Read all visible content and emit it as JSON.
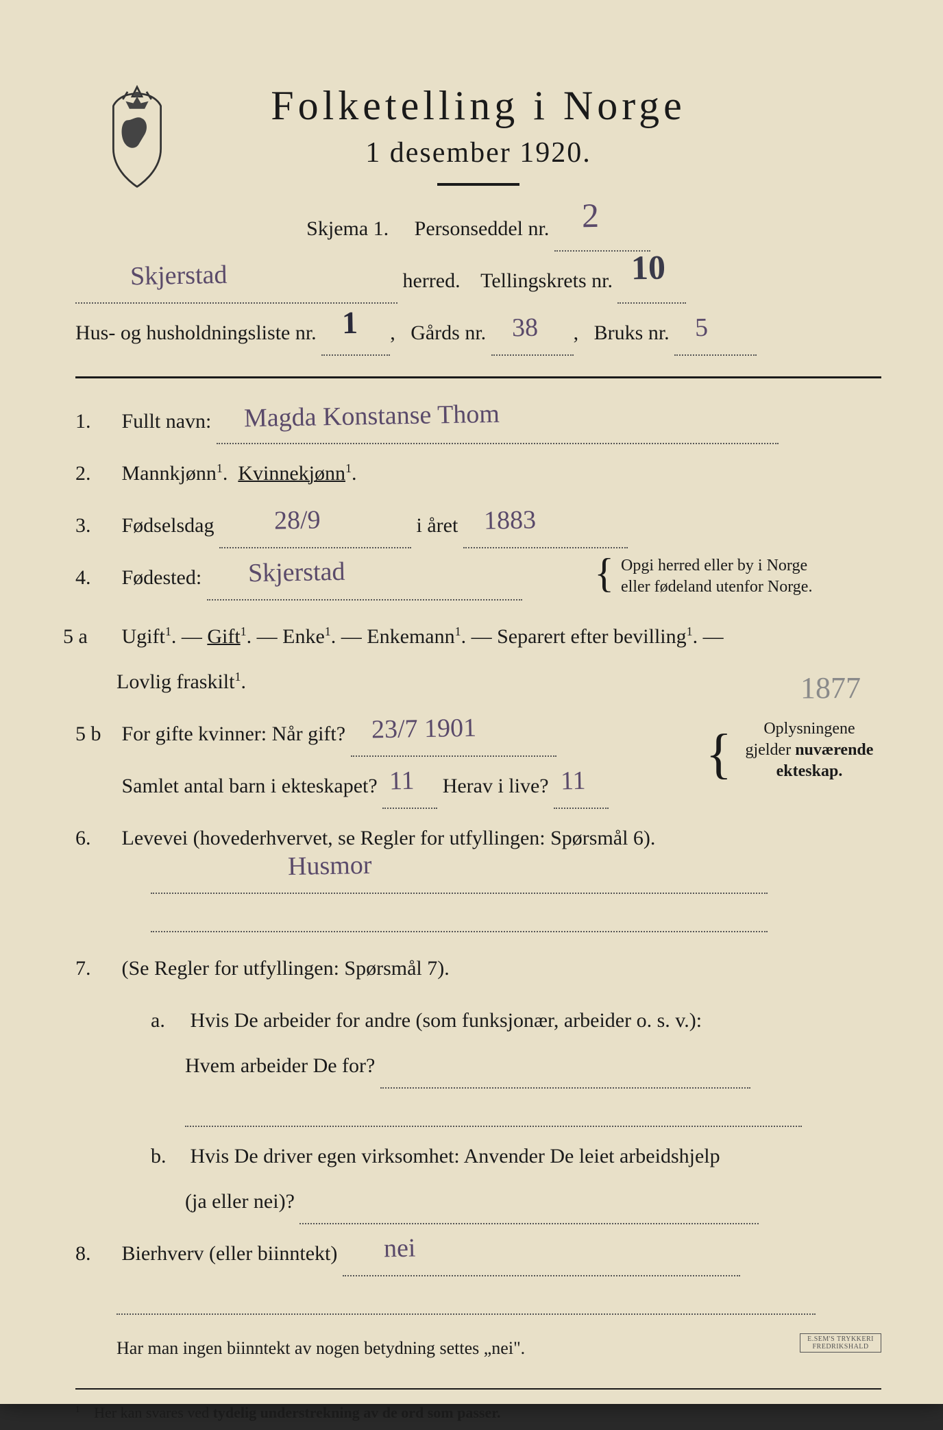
{
  "header": {
    "title": "Folketelling  i  Norge",
    "subtitle": "1 desember 1920."
  },
  "form_id": {
    "skjema_label": "Skjema 1.",
    "personseddel_label": "Personseddel nr.",
    "personseddel_nr": "2",
    "herred_value": "Skjerstad",
    "herred_label": "herred.",
    "tellingskrets_label": "Tellingskrets nr.",
    "tellingskrets_nr": "10",
    "husliste_label": "Hus- og husholdningsliste nr.",
    "husliste_nr": "1",
    "gards_label": "Gårds nr.",
    "gards_nr": "38",
    "bruks_label": "Bruks nr.",
    "bruks_nr": "5"
  },
  "q1": {
    "num": "1.",
    "label": "Fullt navn:",
    "value": "Magda Konstanse Thom"
  },
  "q2": {
    "num": "2.",
    "label_a": "Mannkjønn",
    "label_b": "Kvinnekjønn",
    "sup": "1"
  },
  "q3": {
    "num": "3.",
    "label": "Fødselsdag",
    "day": "28/9",
    "mid": "i året",
    "year": "1883"
  },
  "q4": {
    "num": "4.",
    "label": "Fødested:",
    "value": "Skjerstad",
    "side_a": "Opgi herred eller by i Norge",
    "side_b": "eller fødeland utenfor Norge."
  },
  "q5a": {
    "num": "5 a",
    "opt1": "Ugift",
    "opt2": "Gift",
    "opt3": "Enke",
    "opt4": "Enkemann",
    "opt5": "Separert efter bevilling",
    "opt6": "Lovlig fraskilt",
    "sup": "1",
    "margin_note": "1877"
  },
  "q5b": {
    "num": "5 b",
    "label_a": "For gifte kvinner:  Når gift?",
    "value_a": "23/7  1901",
    "label_b": "Samlet antal barn i ekteskapet?",
    "value_b": "11",
    "label_c": "Herav i live?",
    "value_c": "11",
    "side_a": "Oplysningene",
    "side_b": "gjelder nuværende",
    "side_c": "ekteskap."
  },
  "q6": {
    "num": "6.",
    "label": "Levevei (hovederhvervet, se Regler for utfyllingen: Spørsmål 6).",
    "value": "Husmor"
  },
  "q7": {
    "num": "7.",
    "label": "(Se Regler for utfyllingen:  Spørsmål 7).",
    "a_num": "a.",
    "a_label1": "Hvis De arbeider for andre (som funksjonær, arbeider o. s. v.):",
    "a_label2": "Hvem arbeider De for?",
    "b_num": "b.",
    "b_label1": "Hvis De driver egen virksomhet:  Anvender De leiet arbeidshjelp",
    "b_label2": "(ja eller nei)?"
  },
  "q8": {
    "num": "8.",
    "label": "Bierhverv (eller biinntekt)",
    "value": "nei"
  },
  "footer": {
    "note": "Har man ingen biinntekt av nogen betydning settes „nei\".",
    "footnote_num": "1",
    "footnote_text": "Her kan svares ved tydelig understrekning av de ord som passer.",
    "printer1": "E.SEM'S TRYKKERI",
    "printer2": "FREDRIKSHALD"
  }
}
